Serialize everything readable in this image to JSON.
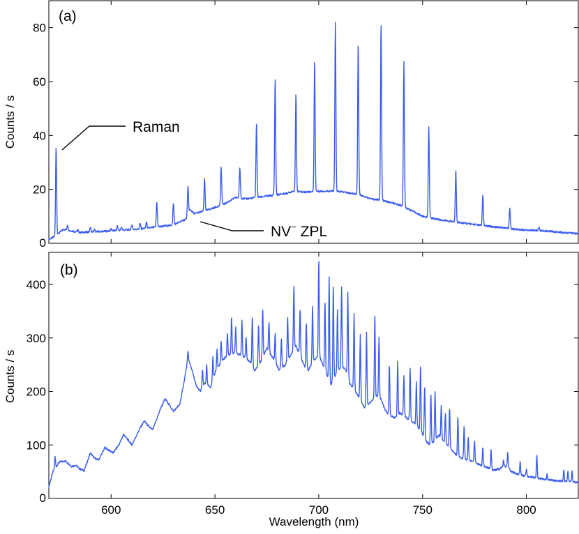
{
  "colors": {
    "series": "#3a5cf0"
  },
  "chart_data": [
    {
      "panel": "a",
      "type": "line",
      "panel_label": "(a)",
      "ylabel": "Counts / s",
      "xlabel": "",
      "xlim": [
        570,
        825
      ],
      "ylim": [
        0,
        90
      ],
      "yticks": [
        0,
        20,
        40,
        60,
        80
      ],
      "xticks": [
        600,
        650,
        700,
        750,
        800
      ],
      "baseline": [
        [
          570,
          1.5
        ],
        [
          573,
          2.5
        ],
        [
          577,
          5.2
        ],
        [
          585,
          4.0
        ],
        [
          600,
          4.6
        ],
        [
          615,
          5.4
        ],
        [
          630,
          6.8
        ],
        [
          636,
          9.0
        ],
        [
          638,
          12.5
        ],
        [
          640,
          11.0
        ],
        [
          645,
          12.0
        ],
        [
          650,
          13.3
        ],
        [
          655,
          14.8
        ],
        [
          660,
          17.0
        ],
        [
          665,
          16.5
        ],
        [
          670,
          17.0
        ],
        [
          680,
          18.0
        ],
        [
          685,
          18.6
        ],
        [
          688,
          19.5
        ],
        [
          692,
          19.0
        ],
        [
          700,
          19.3
        ],
        [
          707,
          19.4
        ],
        [
          712,
          19.0
        ],
        [
          720,
          18.0
        ],
        [
          725,
          16.5
        ],
        [
          730,
          16.0
        ],
        [
          740,
          14.0
        ],
        [
          750,
          10.0
        ],
        [
          760,
          8.5
        ],
        [
          770,
          7.5
        ],
        [
          780,
          6.5
        ],
        [
          795,
          5.2
        ],
        [
          810,
          4.5
        ],
        [
          825,
          3.6
        ]
      ],
      "peaks": [
        [
          573.5,
          36
        ],
        [
          579,
          7
        ],
        [
          584,
          5
        ],
        [
          590,
          6
        ],
        [
          592,
          5
        ],
        [
          600,
          5.5
        ],
        [
          603,
          6.5
        ],
        [
          605,
          6
        ],
        [
          610,
          7
        ],
        [
          614,
          7.3
        ],
        [
          617,
          8
        ],
        [
          622,
          15.5
        ],
        [
          630,
          15
        ],
        [
          637,
          21
        ],
        [
          645,
          24
        ],
        [
          653,
          28.5
        ],
        [
          662,
          28
        ],
        [
          670,
          44.5
        ],
        [
          679,
          61.5
        ],
        [
          689,
          55.5
        ],
        [
          698,
          68
        ],
        [
          708,
          82
        ],
        [
          719,
          74.5
        ],
        [
          730,
          82
        ],
        [
          741,
          67.5
        ],
        [
          753,
          43.5
        ],
        [
          766,
          27
        ],
        [
          779,
          18
        ],
        [
          792,
          13
        ],
        [
          806,
          6
        ]
      ],
      "annotations": [
        {
          "text": "Raman"
        },
        {
          "text": "NV",
          "superscript": "−",
          "suffix": " ZPL"
        }
      ]
    },
    {
      "panel": "b",
      "type": "line",
      "panel_label": "(b)",
      "ylabel": "Counts / s",
      "xlabel": "Wavelength (nm)",
      "xlim": [
        570,
        825
      ],
      "ylim": [
        0,
        460
      ],
      "yticks": [
        0,
        100,
        200,
        300,
        400
      ],
      "xticks": [
        600,
        650,
        700,
        750,
        800
      ],
      "baseline": [
        [
          570,
          22
        ],
        [
          572,
          50
        ],
        [
          575,
          68
        ],
        [
          578,
          70
        ],
        [
          581,
          60
        ],
        [
          583,
          62
        ],
        [
          585,
          55
        ],
        [
          587,
          52
        ],
        [
          590,
          85
        ],
        [
          592,
          75
        ],
        [
          594,
          72
        ],
        [
          597,
          95
        ],
        [
          599,
          90
        ],
        [
          601,
          85
        ],
        [
          604,
          102
        ],
        [
          606,
          120
        ],
        [
          608,
          110
        ],
        [
          610,
          100
        ],
        [
          614,
          132
        ],
        [
          616,
          145
        ],
        [
          618,
          135
        ],
        [
          620,
          128
        ],
        [
          624,
          170
        ],
        [
          626,
          186
        ],
        [
          628,
          175
        ],
        [
          630,
          163
        ],
        [
          633,
          175
        ],
        [
          635,
          215
        ],
        [
          637,
          262
        ],
        [
          639,
          240
        ],
        [
          641,
          210
        ],
        [
          643,
          200
        ],
        [
          645,
          215
        ],
        [
          648,
          208
        ],
        [
          650,
          235
        ],
        [
          653,
          255
        ],
        [
          656,
          268
        ],
        [
          660,
          272
        ],
        [
          664,
          265
        ],
        [
          667,
          255
        ],
        [
          669,
          238
        ],
        [
          672,
          255
        ],
        [
          675,
          280
        ],
        [
          678,
          262
        ],
        [
          681,
          240
        ],
        [
          684,
          250
        ],
        [
          687,
          272
        ],
        [
          689,
          285
        ],
        [
          691,
          268
        ],
        [
          693,
          248
        ],
        [
          695,
          240
        ],
        [
          697,
          255
        ],
        [
          700,
          268
        ],
        [
          702,
          250
        ],
        [
          704,
          230
        ],
        [
          706,
          212
        ],
        [
          708,
          230
        ],
        [
          711,
          248
        ],
        [
          713,
          240
        ],
        [
          715,
          215
        ],
        [
          718,
          198
        ],
        [
          720,
          185
        ],
        [
          722,
          170
        ],
        [
          725,
          180
        ],
        [
          728,
          192
        ],
        [
          730,
          185
        ],
        [
          732,
          165
        ],
        [
          734,
          155
        ],
        [
          737,
          150
        ],
        [
          739,
          160
        ],
        [
          741,
          155
        ],
        [
          744,
          145
        ],
        [
          747,
          138
        ],
        [
          750,
          120
        ],
        [
          752,
          105
        ],
        [
          754,
          100
        ],
        [
          756,
          110
        ],
        [
          758,
          118
        ],
        [
          760,
          108
        ],
        [
          763,
          95
        ],
        [
          766,
          82
        ],
        [
          769,
          75
        ],
        [
          772,
          72
        ],
        [
          775,
          68
        ],
        [
          778,
          62
        ],
        [
          781,
          58
        ],
        [
          784,
          53
        ],
        [
          787,
          55
        ],
        [
          789,
          60
        ],
        [
          791,
          58
        ],
        [
          793,
          50
        ],
        [
          796,
          45
        ],
        [
          800,
          42
        ],
        [
          805,
          38
        ],
        [
          810,
          35
        ],
        [
          815,
          33
        ],
        [
          820,
          32
        ],
        [
          825,
          30
        ]
      ],
      "peaks": [
        [
          573,
          78
        ],
        [
          591,
          75
        ],
        [
          633,
          175
        ],
        [
          637,
          275
        ],
        [
          644,
          240
        ],
        [
          646,
          250
        ],
        [
          649,
          265
        ],
        [
          651,
          280
        ],
        [
          653,
          295
        ],
        [
          656,
          310
        ],
        [
          658,
          340
        ],
        [
          660,
          320
        ],
        [
          663,
          335
        ],
        [
          665,
          300
        ],
        [
          668,
          340
        ],
        [
          671,
          325
        ],
        [
          673,
          355
        ],
        [
          676,
          330
        ],
        [
          679,
          310
        ],
        [
          682,
          300
        ],
        [
          685,
          340
        ],
        [
          688,
          400
        ],
        [
          691,
          355
        ],
        [
          694,
          330
        ],
        [
          697,
          360
        ],
        [
          700,
          450
        ],
        [
          703,
          370
        ],
        [
          705,
          415
        ],
        [
          707,
          400
        ],
        [
          709,
          355
        ],
        [
          711,
          395
        ],
        [
          714,
          385
        ],
        [
          717,
          345
        ],
        [
          720,
          305
        ],
        [
          723,
          310
        ],
        [
          727,
          345
        ],
        [
          729,
          300
        ],
        [
          734,
          250
        ],
        [
          738,
          255
        ],
        [
          741,
          230
        ],
        [
          744,
          245
        ],
        [
          747,
          220
        ],
        [
          749,
          250
        ],
        [
          751,
          210
        ],
        [
          754,
          195
        ],
        [
          756,
          200
        ],
        [
          759,
          175
        ],
        [
          761,
          160
        ],
        [
          763,
          170
        ],
        [
          767,
          155
        ],
        [
          770,
          135
        ],
        [
          772,
          115
        ],
        [
          775,
          110
        ],
        [
          779,
          95
        ],
        [
          783,
          90
        ],
        [
          789,
          72
        ],
        [
          791,
          85
        ],
        [
          797,
          70
        ],
        [
          800,
          55
        ],
        [
          805,
          80
        ],
        [
          810,
          45
        ],
        [
          818,
          55
        ],
        [
          820,
          52
        ],
        [
          822,
          50
        ]
      ]
    }
  ]
}
